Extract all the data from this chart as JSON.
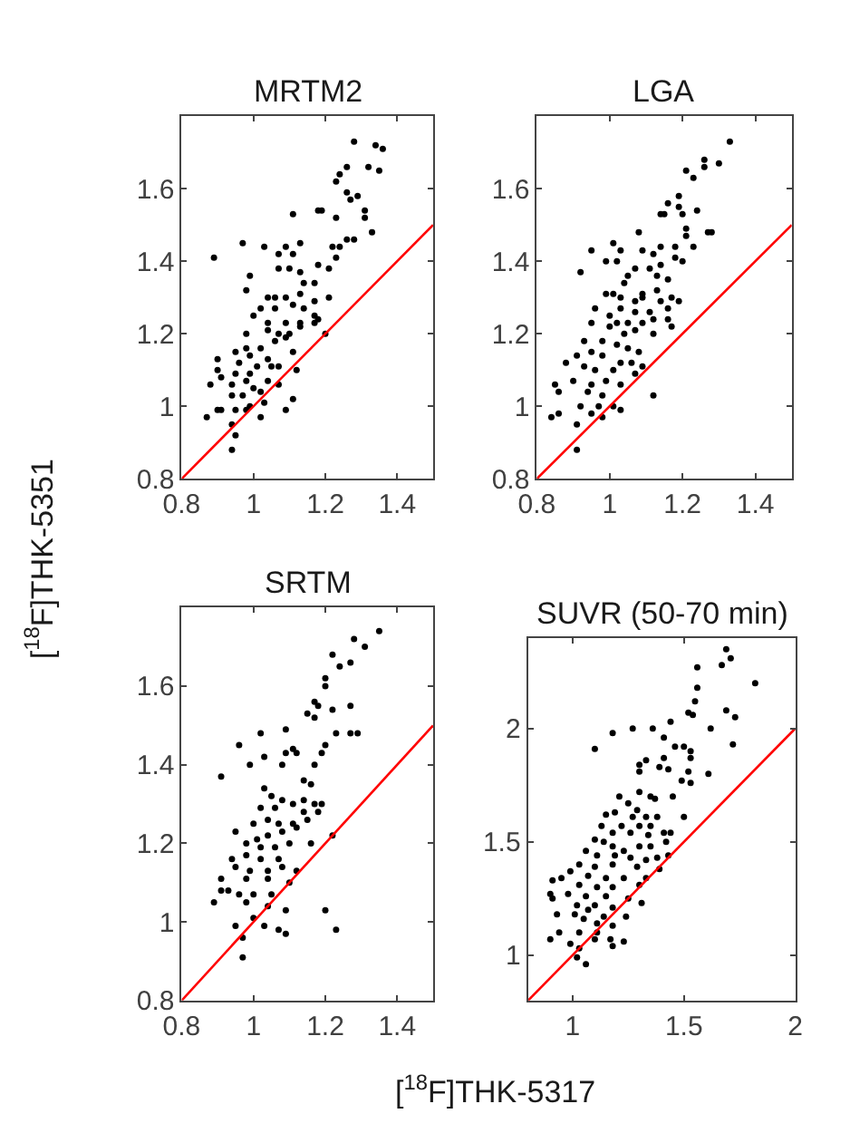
{
  "chart_data": [
    {
      "type": "scatter",
      "title": "MRTM2",
      "ylabel": "[$^{18}$F]THK-5351",
      "marker": "circle",
      "grid": false,
      "xlim": [
        0.8,
        1.5
      ],
      "ylim": [
        0.8,
        1.8
      ],
      "xticks": [
        0.8,
        1,
        1.2,
        1.4
      ],
      "yticks": [
        0.8,
        1,
        1.2,
        1.4,
        1.6
      ],
      "series": [
        {
          "color": "#000000",
          "x": [
            1.28,
            1.34,
            1.36,
            1.32,
            1.35,
            1.26,
            1.24,
            1.23,
            1.26,
            1.29,
            1.27,
            1.11,
            1.18,
            1.19,
            1.31,
            1.31,
            1.23,
            1.33,
            1.26,
            1.28,
            1.22,
            1.24,
            0.97,
            1.03,
            1.09,
            1.13,
            0.89,
            1.07,
            1.11,
            1.18,
            1.21,
            1.23,
            0.99,
            1.07,
            1.1,
            1.13,
            1.14,
            1.17,
            0.98,
            1.04,
            1.06,
            1.09,
            1.13,
            1.17,
            1.21,
            1.02,
            1.06,
            1.11,
            1.14,
            1.17,
            1.0,
            1.04,
            1.09,
            1.13,
            1.17,
            1.18,
            0.98,
            1.04,
            1.07,
            1.1,
            1.13,
            1.2,
            1.02,
            1.06,
            1.09,
            0.95,
            0.98,
            0.99,
            1.04,
            1.11,
            0.9,
            0.96,
            1.01,
            1.05,
            1.07,
            1.12,
            0.9,
            0.95,
            0.99,
            0.91,
            0.98,
            1.04,
            0.88,
            0.94,
            1.0,
            1.07,
            0.97,
            1.02,
            0.94,
            1.11,
            0.99,
            1.03,
            0.95,
            0.9,
            0.91,
            0.98,
            1.09,
            0.87,
            1.02,
            0.94,
            0.95,
            0.94
          ],
          "values": [
            1.73,
            1.72,
            1.71,
            1.66,
            1.65,
            1.66,
            1.64,
            1.62,
            1.59,
            1.58,
            1.57,
            1.53,
            1.54,
            1.54,
            1.54,
            1.52,
            1.52,
            1.48,
            1.46,
            1.46,
            1.44,
            1.44,
            1.45,
            1.44,
            1.44,
            1.45,
            1.41,
            1.42,
            1.42,
            1.39,
            1.38,
            1.41,
            1.36,
            1.38,
            1.38,
            1.37,
            1.34,
            1.34,
            1.32,
            1.3,
            1.3,
            1.3,
            1.31,
            1.29,
            1.3,
            1.27,
            1.27,
            1.28,
            1.27,
            1.25,
            1.25,
            1.23,
            1.23,
            1.23,
            1.23,
            1.24,
            1.2,
            1.21,
            1.2,
            1.2,
            1.22,
            1.2,
            1.16,
            1.18,
            1.19,
            1.15,
            1.16,
            1.14,
            1.13,
            1.15,
            1.13,
            1.12,
            1.11,
            1.11,
            1.11,
            1.1,
            1.1,
            1.09,
            1.09,
            1.08,
            1.07,
            1.07,
            1.06,
            1.06,
            1.05,
            1.06,
            1.03,
            1.04,
            1.03,
            1.02,
            1.0,
            1.01,
            0.99,
            0.99,
            0.99,
            0.99,
            0.99,
            0.97,
            0.97,
            0.95,
            0.92,
            0.88
          ]
        },
        {
          "type": "line",
          "color": "#ff0000",
          "marker": "none",
          "x": [
            0.8,
            1.5
          ],
          "values": [
            0.8,
            1.5
          ]
        }
      ]
    },
    {
      "type": "scatter",
      "title": "LGA",
      "marker": "circle",
      "grid": false,
      "xlim": [
        0.8,
        1.5
      ],
      "ylim": [
        0.8,
        1.8
      ],
      "xticks": [
        0.8,
        1,
        1.2,
        1.4
      ],
      "yticks": [
        0.8,
        1,
        1.2,
        1.4,
        1.6
      ],
      "series": [
        {
          "color": "#000000",
          "x": [
            1.33,
            1.26,
            1.3,
            1.26,
            1.21,
            1.23,
            1.19,
            1.16,
            1.19,
            1.15,
            1.14,
            1.2,
            1.24,
            1.21,
            1.21,
            1.28,
            1.27,
            1.08,
            1.14,
            1.18,
            1.23,
            0.95,
            1.01,
            1.03,
            1.09,
            1.12,
            0.99,
            1.02,
            1.18,
            1.2,
            0.92,
            1.07,
            1.11,
            1.14,
            1.05,
            1.13,
            1.16,
            0.99,
            1.01,
            1.04,
            1.09,
            1.13,
            1.17,
            1.03,
            1.07,
            1.09,
            1.14,
            1.19,
            0.96,
            1.0,
            1.03,
            1.07,
            1.11,
            1.16,
            1.02,
            1.05,
            1.09,
            1.12,
            1.16,
            0.95,
            1.0,
            1.04,
            1.07,
            1.12,
            1.17,
            0.93,
            0.98,
            1.02,
            1.05,
            1.08,
            0.95,
            0.91,
            0.98,
            1.03,
            1.06,
            1.09,
            0.88,
            0.93,
            0.96,
            1.01,
            1.07,
            0.85,
            0.9,
            0.95,
            0.99,
            1.03,
            0.86,
            0.94,
            0.98,
            1.12,
            0.92,
            0.97,
            1.01,
            0.86,
            0.84,
            0.95,
            1.03,
            0.91,
            0.98,
            0.91
          ],
          "values": [
            1.73,
            1.68,
            1.67,
            1.66,
            1.65,
            1.63,
            1.58,
            1.56,
            1.55,
            1.53,
            1.53,
            1.53,
            1.54,
            1.49,
            1.47,
            1.48,
            1.48,
            1.48,
            1.44,
            1.44,
            1.44,
            1.43,
            1.45,
            1.43,
            1.43,
            1.42,
            1.4,
            1.4,
            1.41,
            1.4,
            1.37,
            1.38,
            1.38,
            1.39,
            1.36,
            1.36,
            1.35,
            1.31,
            1.31,
            1.34,
            1.31,
            1.32,
            1.3,
            1.3,
            1.29,
            1.3,
            1.29,
            1.29,
            1.27,
            1.25,
            1.27,
            1.26,
            1.26,
            1.27,
            1.23,
            1.23,
            1.23,
            1.24,
            1.24,
            1.23,
            1.22,
            1.2,
            1.21,
            1.2,
            1.22,
            1.18,
            1.18,
            1.17,
            1.16,
            1.15,
            1.15,
            1.14,
            1.14,
            1.12,
            1.12,
            1.11,
            1.12,
            1.11,
            1.1,
            1.1,
            1.09,
            1.06,
            1.07,
            1.06,
            1.07,
            1.06,
            1.04,
            1.04,
            1.03,
            1.03,
            1.0,
            1.0,
            1.0,
            0.98,
            0.97,
            0.98,
            0.99,
            0.95,
            0.97,
            0.88
          ]
        },
        {
          "type": "line",
          "color": "#ff0000",
          "marker": "none",
          "x": [
            0.8,
            1.5
          ],
          "values": [
            0.8,
            1.5
          ]
        }
      ]
    },
    {
      "type": "scatter",
      "title": "SRTM",
      "xlabel": "[$^{18}$F]THK-5317",
      "marker": "circle",
      "grid": false,
      "xlim": [
        0.8,
        1.5
      ],
      "ylim": [
        0.8,
        1.8
      ],
      "xticks": [
        0.8,
        1,
        1.2,
        1.4
      ],
      "yticks": [
        0.8,
        1,
        1.2,
        1.4,
        1.6
      ],
      "series": [
        {
          "color": "#000000",
          "x": [
            1.35,
            1.28,
            1.31,
            1.22,
            1.24,
            1.27,
            1.2,
            1.2,
            1.17,
            1.18,
            1.22,
            1.27,
            1.15,
            1.17,
            1.02,
            1.09,
            1.23,
            1.27,
            1.29,
            0.96,
            1.2,
            1.11,
            1.09,
            1.12,
            1.03,
            1.19,
            0.99,
            1.08,
            1.17,
            0.91,
            1.14,
            1.16,
            1.03,
            1.05,
            1.08,
            1.11,
            1.14,
            1.17,
            1.19,
            1.02,
            1.06,
            1.14,
            1.18,
            1.0,
            1.04,
            1.07,
            1.11,
            1.15,
            0.95,
            1.01,
            1.04,
            1.08,
            1.12,
            0.98,
            1.02,
            1.06,
            1.1,
            1.16,
            1.22,
            0.98,
            1.02,
            1.07,
            0.94,
            0.95,
            0.99,
            1.04,
            1.08,
            1.12,
            0.91,
            0.98,
            1.04,
            1.1,
            0.91,
            0.93,
            0.96,
            1.0,
            1.05,
            0.89,
            0.98,
            1.04,
            1.09,
            1.2,
            1.0,
            0.95,
            1.03,
            1.07,
            1.09,
            1.23,
            0.97,
            0.97
          ],
          "values": [
            1.74,
            1.72,
            1.7,
            1.68,
            1.65,
            1.66,
            1.62,
            1.6,
            1.56,
            1.55,
            1.54,
            1.55,
            1.53,
            1.52,
            1.48,
            1.49,
            1.48,
            1.48,
            1.48,
            1.45,
            1.45,
            1.44,
            1.43,
            1.43,
            1.42,
            1.43,
            1.4,
            1.4,
            1.4,
            1.37,
            1.36,
            1.35,
            1.34,
            1.32,
            1.31,
            1.3,
            1.31,
            1.3,
            1.3,
            1.29,
            1.29,
            1.28,
            1.28,
            1.25,
            1.26,
            1.25,
            1.25,
            1.26,
            1.23,
            1.21,
            1.22,
            1.23,
            1.24,
            1.2,
            1.19,
            1.19,
            1.2,
            1.2,
            1.22,
            1.17,
            1.16,
            1.16,
            1.16,
            1.14,
            1.13,
            1.13,
            1.14,
            1.13,
            1.11,
            1.11,
            1.11,
            1.1,
            1.08,
            1.08,
            1.07,
            1.07,
            1.07,
            1.05,
            1.05,
            1.04,
            1.03,
            1.03,
            1.01,
            0.99,
            0.99,
            0.98,
            0.97,
            0.98,
            0.96,
            0.91
          ]
        },
        {
          "type": "line",
          "color": "#ff0000",
          "marker": "none",
          "x": [
            0.8,
            1.5
          ],
          "values": [
            0.8,
            1.5
          ]
        }
      ]
    },
    {
      "type": "scatter",
      "title": "SUVR (50-70 min)",
      "marker": "circle",
      "grid": false,
      "xlim": [
        0.8,
        2
      ],
      "ylim": [
        0.8,
        2.4
      ],
      "xticks": [
        1,
        1.5,
        2
      ],
      "yticks": [
        1,
        1.5,
        2
      ],
      "series": [
        {
          "color": "#000000",
          "x": [
            1.69,
            1.71,
            1.67,
            1.56,
            1.82,
            1.56,
            1.55,
            1.52,
            1.54,
            1.69,
            1.73,
            1.44,
            1.62,
            1.27,
            1.36,
            1.18,
            1.41,
            1.72,
            1.46,
            1.5,
            1.1,
            1.53,
            1.41,
            1.33,
            1.53,
            1.3,
            1.39,
            1.3,
            1.43,
            1.52,
            1.61,
            1.49,
            1.53,
            1.21,
            1.3,
            1.35,
            1.37,
            1.45,
            1.25,
            1.29,
            1.19,
            1.15,
            1.27,
            1.33,
            1.38,
            1.5,
            1.13,
            1.22,
            1.3,
            1.35,
            1.18,
            1.26,
            1.34,
            1.41,
            1.44,
            1.1,
            1.14,
            1.18,
            1.23,
            1.3,
            1.35,
            1.42,
            1.06,
            1.11,
            1.19,
            1.26,
            1.33,
            1.38,
            1.43,
            1.03,
            1.1,
            1.18,
            1.29,
            1.39,
            0.99,
            1.07,
            1.15,
            1.23,
            1.33,
            0.91,
            0.95,
            1.03,
            1.11,
            1.18,
            1.3,
            0.9,
            0.98,
            1.06,
            1.15,
            1.25,
            1.31,
            0.91,
            1.02,
            1.1,
            1.18,
            1.01,
            1.07,
            1.14,
            1.24,
            0.93,
            1.05,
            1.11,
            1.18,
            0.94,
            1.03,
            1.11,
            0.9,
            0.99,
            1.1,
            1.17,
            1.23,
            1.18,
            1.03,
            1.02,
            1.06
          ],
          "values": [
            2.35,
            2.31,
            2.28,
            2.27,
            2.2,
            2.18,
            2.12,
            2.07,
            2.06,
            2.08,
            2.05,
            2.03,
            2.0,
            2.0,
            2.0,
            1.98,
            1.96,
            1.93,
            1.92,
            1.92,
            1.91,
            1.9,
            1.87,
            1.86,
            1.87,
            1.84,
            1.83,
            1.81,
            1.82,
            1.81,
            1.8,
            1.77,
            1.76,
            1.7,
            1.72,
            1.7,
            1.69,
            1.7,
            1.67,
            1.64,
            1.63,
            1.62,
            1.61,
            1.61,
            1.61,
            1.61,
            1.57,
            1.57,
            1.57,
            1.57,
            1.54,
            1.54,
            1.53,
            1.54,
            1.54,
            1.51,
            1.5,
            1.48,
            1.46,
            1.48,
            1.48,
            1.5,
            1.46,
            1.44,
            1.44,
            1.43,
            1.42,
            1.43,
            1.44,
            1.4,
            1.39,
            1.4,
            1.39,
            1.38,
            1.37,
            1.35,
            1.34,
            1.34,
            1.34,
            1.33,
            1.34,
            1.31,
            1.3,
            1.3,
            1.31,
            1.27,
            1.27,
            1.26,
            1.26,
            1.25,
            1.23,
            1.25,
            1.22,
            1.22,
            1.21,
            1.18,
            1.2,
            1.17,
            1.17,
            1.18,
            1.16,
            1.14,
            1.13,
            1.1,
            1.1,
            1.1,
            1.07,
            1.05,
            1.07,
            1.07,
            1.06,
            1.04,
            1.03,
            0.99,
            0.96
          ]
        },
        {
          "type": "line",
          "color": "#ff0000",
          "marker": "none",
          "x": [
            0.8,
            2
          ],
          "values": [
            0.8,
            2
          ]
        }
      ]
    }
  ]
}
